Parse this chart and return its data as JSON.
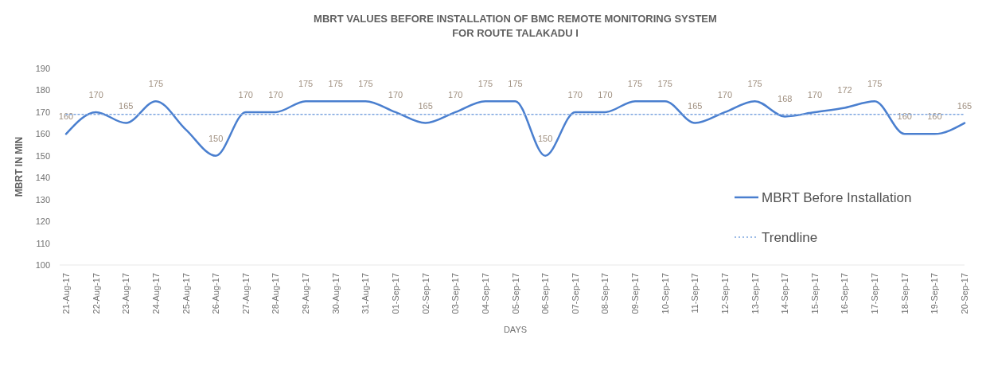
{
  "chart_data": {
    "type": "line",
    "title": "MBRT VALUES BEFORE  INSTALLATION OF BMC REMOTE MONITORING SYSTEM\nFOR ROUTE TALAKADU I",
    "xlabel": "DAYS",
    "ylabel": "MBRT IN MIN",
    "categories": [
      "21-Aug-17",
      "22-Aug-17",
      "23-Aug-17",
      "24-Aug-17",
      "25-Aug-17",
      "26-Aug-17",
      "27-Aug-17",
      "28-Aug-17",
      "29-Aug-17",
      "30-Aug-17",
      "31-Aug-17",
      "01-Sep-17",
      "02-Sep-17",
      "03-Sep-17",
      "04-Sep-17",
      "05-Sep-17",
      "06-Sep-17",
      "07-Sep-17",
      "08-Sep-17",
      "09-Sep-17",
      "10-Sep-17",
      "11-Sep-17",
      "12-Sep-17",
      "13-Sep-17",
      "14-Sep-17",
      "15-Sep-17",
      "16-Sep-17",
      "17-Sep-17",
      "18-Sep-17",
      "19-Sep-17",
      "20-Sep-17"
    ],
    "series": [
      {
        "name": "MBRT Before Installation",
        "color": "#4a7fcf",
        "line_style": "solid",
        "values": [
          160,
          170,
          165,
          175,
          162,
          150,
          170,
          170,
          175,
          175,
          175,
          170,
          165,
          170,
          175,
          175,
          150,
          170,
          170,
          175,
          175,
          165,
          170,
          175,
          168,
          170,
          172,
          175,
          160,
          160,
          165
        ],
        "value_labels": [
          "160",
          "170",
          "165",
          "175",
          null,
          "150",
          "170",
          "170",
          "175",
          "175",
          "175",
          "170",
          "165",
          "170",
          "175",
          "175",
          "150",
          "170",
          "170",
          "175",
          "175",
          "165",
          "170",
          "175",
          "168",
          "170",
          "172",
          "175",
          "160",
          "160",
          "165"
        ]
      },
      {
        "name": "Trendline",
        "type": "line",
        "color": "#7ea6e0",
        "line_style": "dotted",
        "x": [
          "21-Aug-17",
          "20-Sep-17"
        ],
        "values": [
          169,
          169
        ]
      }
    ],
    "ylim": [
      100,
      190
    ],
    "yticks": [
      100,
      110,
      120,
      130,
      140,
      150,
      160,
      170,
      180,
      190
    ],
    "grid": false,
    "legend": "right",
    "marker": "none"
  }
}
